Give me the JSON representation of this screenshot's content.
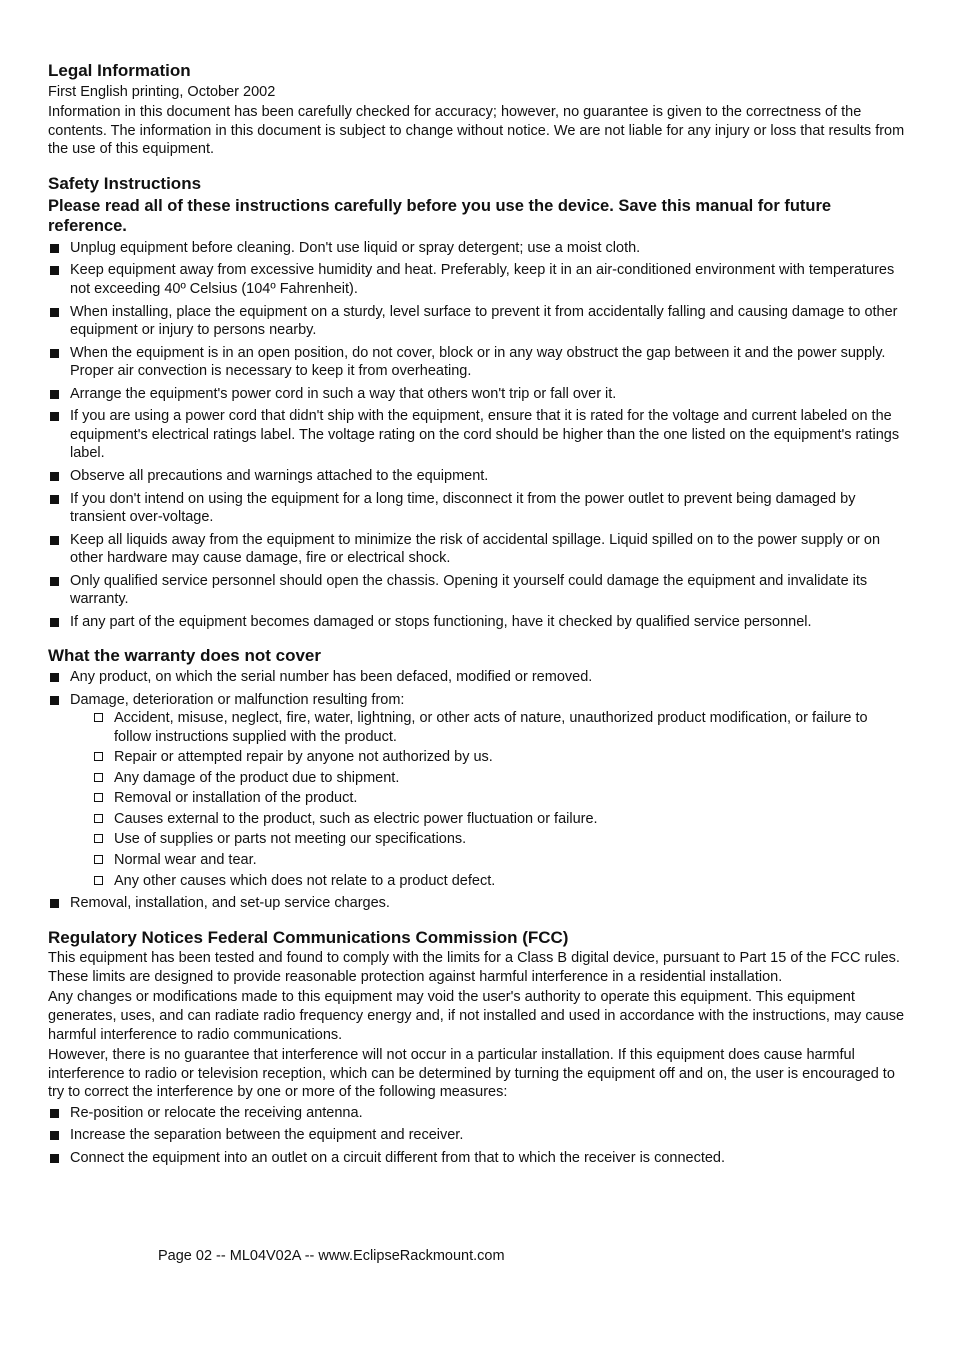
{
  "legal": {
    "heading": "Legal Information",
    "subtitle": "First English printing, October 2002",
    "body": "Information in this document has been carefully checked for accuracy; however, no guarantee is given to the correctness of the contents. The information in this document is subject to change without notice. We are not liable for any injury or loss that results from the use of this equipment."
  },
  "safety": {
    "heading": "Safety Instructions",
    "subheading": "Please read all of these instructions carefully before you use the device. Save this manual for future reference.",
    "items": [
      "Unplug equipment before cleaning. Don't use liquid or spray detergent; use a moist cloth.",
      "Keep equipment away from excessive humidity and heat. Preferably, keep it in an air-conditioned environment with temperatures not exceeding 40º Celsius (104º Fahrenheit).",
      "When installing, place the equipment on a sturdy, level surface to prevent it from accidentally falling and causing damage to other equipment or injury to persons nearby.",
      "When the equipment is in an open position, do not cover, block or in any way obstruct the gap between it and the power supply. Proper air convection is necessary to keep it from overheating.",
      "Arrange the equipment's power cord in such a way that others won't trip or fall over it.",
      "If you are using a power cord that didn't ship with the equipment, ensure that it is rated for the voltage and current labeled on the equipment's electrical ratings label. The voltage rating on the cord should be higher than the one listed on the equipment's ratings label.",
      "Observe all precautions and warnings attached to the equipment.",
      "If you don't intend on using the equipment for a long time, disconnect it from the power outlet to prevent being damaged by transient over-voltage.",
      "Keep all liquids away from the equipment to minimize the risk of accidental spillage. Liquid spilled on to the power supply or on other hardware may cause damage, ﬁre or electrical shock.",
      "Only qualiﬁed service personnel should open the chassis. Opening it yourself could damage the equipment and invalidate its warranty.",
      "If any part of the equipment becomes damaged or stops functioning, have it checked by qualiﬁed service personnel."
    ]
  },
  "warranty": {
    "heading": "What the warranty does not cover",
    "items_before": [
      "Any product, on which the serial number has been defaced, modiﬁed or removed.",
      "Damage, deterioration or malfunction resulting from:"
    ],
    "sub_items": [
      "Accident, misuse, neglect, ﬁre, water, lightning, or other acts of nature, unauthorized product modiﬁcation, or failure to follow instructions supplied with the product.",
      "Repair or attempted repair by anyone not authorized by us.",
      "Any damage of the product due to shipment.",
      "Removal or installation of the product.",
      "Causes external to the product, such as electric power ﬂuctuation or failure.",
      "Use of supplies or parts not meeting our speciﬁcations.",
      "Normal wear and tear.",
      "Any other causes which does not relate to a product defect."
    ],
    "items_after": [
      "Removal, installation, and set-up service charges."
    ]
  },
  "regulatory": {
    "heading": "Regulatory Notices Federal Communications Commission (FCC)",
    "p1": "This equipment has been tested and found to comply with the limits for a Class B digital device, pursuant to Part 15 of the FCC rules. These limits are designed to provide reasonable protection against harmful interference in a residential installation.",
    "p2": "Any changes or modiﬁcations made to this equipment may void the user's authority to operate this equipment. This equipment generates, uses, and can radiate radio frequency energy and, if not installed and used in accordance with the instructions, may cause harmful interference to radio communications.",
    "p3": "However, there is no guarantee that interference will not occur in a particular installation. If this equipment does cause harmful interference to radio or television reception, which can be determined by turning the equipment off and on, the user is encouraged to try to correct the interference by one or more of the following measures:",
    "items": [
      "Re-position or relocate the receiving antenna.",
      "Increase the separation between the equipment and receiver.",
      "Connect the equipment into an outlet on a circuit different from that to which the receiver is connected."
    ]
  },
  "footer": "Page 02 -- ML04V02A -- www.EclipseRackmount.com"
}
